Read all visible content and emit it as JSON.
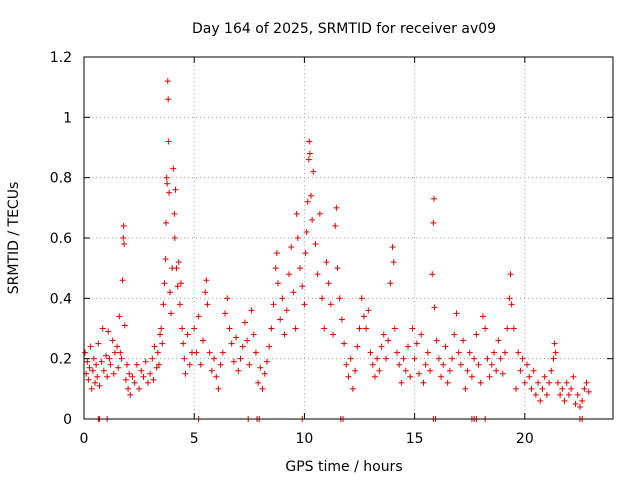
{
  "chart_data": {
    "type": "scatter",
    "title": "Day 164 of 2025, SRMTID for receiver av09",
    "xlabel": "GPS time / hours",
    "ylabel": "SRMTID / TECUs",
    "xlim": [
      0,
      24
    ],
    "ylim": [
      0,
      1.2
    ],
    "x_ticks": [
      0,
      5,
      10,
      15,
      20
    ],
    "x_tick_labels": [
      "0",
      "5",
      "10",
      "15",
      "20"
    ],
    "y_ticks": [
      0,
      0.2,
      0.4,
      0.6,
      0.8,
      1.0,
      1.2
    ],
    "y_tick_labels": [
      "0",
      "0.2",
      "0.4",
      "0.6",
      "0.8",
      "1",
      "1.2"
    ],
    "grid": true,
    "marker": "+",
    "color": "#e00000",
    "series": [
      {
        "name": "SRMTID",
        "points": [
          [
            0.05,
            0.22
          ],
          [
            0.1,
            0.15
          ],
          [
            0.15,
            0.19
          ],
          [
            0.2,
            0.13
          ],
          [
            0.25,
            0.17
          ],
          [
            0.3,
            0.24
          ],
          [
            0.35,
            0.1
          ],
          [
            0.4,
            0.16
          ],
          [
            0.45,
            0.2
          ],
          [
            0.5,
            0.12
          ],
          [
            0.55,
            0.18
          ],
          [
            0.6,
            0.14
          ],
          [
            0.65,
            0.25
          ],
          [
            0.7,
            0.11
          ],
          [
            0.8,
            0.19
          ],
          [
            0.85,
            0.3
          ],
          [
            0.9,
            0.16
          ],
          [
            1.0,
            0.21
          ],
          [
            1.05,
            0.14
          ],
          [
            1.1,
            0.29
          ],
          [
            1.15,
            0.2
          ],
          [
            1.2,
            0.18
          ],
          [
            1.3,
            0.26
          ],
          [
            1.35,
            0.15
          ],
          [
            1.4,
            0.22
          ],
          [
            1.5,
            0.24
          ],
          [
            1.55,
            0.17
          ],
          [
            1.6,
            0.34
          ],
          [
            1.65,
            0.22
          ],
          [
            1.7,
            0.2
          ],
          [
            1.75,
            0.46
          ],
          [
            1.78,
            0.6
          ],
          [
            1.8,
            0.64
          ],
          [
            1.82,
            0.58
          ],
          [
            1.85,
            0.31
          ],
          [
            1.9,
            0.13
          ],
          [
            1.95,
            0.18
          ],
          [
            2.0,
            0.1
          ],
          [
            2.05,
            0.15
          ],
          [
            2.1,
            0.08
          ],
          [
            2.2,
            0.14
          ],
          [
            2.3,
            0.12
          ],
          [
            2.4,
            0.18
          ],
          [
            2.5,
            0.1
          ],
          [
            2.6,
            0.16
          ],
          [
            2.7,
            0.14
          ],
          [
            2.8,
            0.19
          ],
          [
            2.9,
            0.12
          ],
          [
            3.0,
            0.15
          ],
          [
            3.1,
            0.2
          ],
          [
            3.15,
            0.13
          ],
          [
            3.2,
            0.24
          ],
          [
            3.3,
            0.17
          ],
          [
            3.35,
            0.22
          ],
          [
            3.4,
            0.18
          ],
          [
            3.45,
            0.28
          ],
          [
            3.5,
            0.3
          ],
          [
            3.55,
            0.25
          ],
          [
            3.6,
            0.38
          ],
          [
            3.65,
            0.45
          ],
          [
            3.7,
            0.53
          ],
          [
            3.72,
            0.65
          ],
          [
            3.75,
            0.8
          ],
          [
            3.77,
            0.78
          ],
          [
            3.8,
            1.12
          ],
          [
            3.82,
            1.06
          ],
          [
            3.84,
            0.92
          ],
          [
            3.86,
            0.75
          ],
          [
            3.9,
            0.42
          ],
          [
            3.95,
            0.35
          ],
          [
            4.0,
            0.5
          ],
          [
            4.05,
            0.83
          ],
          [
            4.1,
            0.68
          ],
          [
            4.12,
            0.6
          ],
          [
            4.15,
            0.76
          ],
          [
            4.2,
            0.5
          ],
          [
            4.25,
            0.44
          ],
          [
            4.3,
            0.52
          ],
          [
            4.35,
            0.38
          ],
          [
            4.4,
            0.45
          ],
          [
            4.45,
            0.3
          ],
          [
            4.5,
            0.25
          ],
          [
            4.55,
            0.2
          ],
          [
            4.6,
            0.15
          ],
          [
            4.7,
            0.28
          ],
          [
            4.8,
            0.18
          ],
          [
            4.9,
            0.22
          ],
          [
            5.0,
            0.3
          ],
          [
            5.1,
            0.22
          ],
          [
            5.2,
            0.34
          ],
          [
            5.3,
            0.18
          ],
          [
            5.4,
            0.26
          ],
          [
            5.5,
            0.42
          ],
          [
            5.55,
            0.46
          ],
          [
            5.6,
            0.38
          ],
          [
            5.7,
            0.22
          ],
          [
            5.8,
            0.16
          ],
          [
            5.9,
            0.2
          ],
          [
            6.0,
            0.14
          ],
          [
            6.1,
            0.1
          ],
          [
            6.2,
            0.18
          ],
          [
            6.3,
            0.22
          ],
          [
            6.4,
            0.35
          ],
          [
            6.5,
            0.4
          ],
          [
            6.6,
            0.3
          ],
          [
            6.7,
            0.25
          ],
          [
            6.8,
            0.19
          ],
          [
            6.9,
            0.27
          ],
          [
            7.0,
            0.16
          ],
          [
            7.1,
            0.2
          ],
          [
            7.2,
            0.24
          ],
          [
            7.3,
            0.32
          ],
          [
            7.4,
            0.26
          ],
          [
            7.5,
            0.18
          ],
          [
            7.6,
            0.36
          ],
          [
            7.7,
            0.28
          ],
          [
            7.8,
            0.22
          ],
          [
            7.9,
            0.12
          ],
          [
            8.0,
            0.17
          ],
          [
            8.1,
            0.1
          ],
          [
            8.2,
            0.15
          ],
          [
            8.3,
            0.19
          ],
          [
            8.4,
            0.24
          ],
          [
            8.5,
            0.3
          ],
          [
            8.6,
            0.38
          ],
          [
            8.7,
            0.5
          ],
          [
            8.75,
            0.55
          ],
          [
            8.8,
            0.45
          ],
          [
            8.9,
            0.33
          ],
          [
            9.0,
            0.4
          ],
          [
            9.1,
            0.28
          ],
          [
            9.2,
            0.36
          ],
          [
            9.3,
            0.48
          ],
          [
            9.4,
            0.57
          ],
          [
            9.5,
            0.42
          ],
          [
            9.6,
            0.3
          ],
          [
            9.65,
            0.68
          ],
          [
            9.7,
            0.6
          ],
          [
            9.8,
            0.5
          ],
          [
            9.9,
            0.44
          ],
          [
            10.0,
            0.38
          ],
          [
            10.05,
            0.55
          ],
          [
            10.1,
            0.62
          ],
          [
            10.15,
            0.72
          ],
          [
            10.2,
            0.86
          ],
          [
            10.22,
            0.92
          ],
          [
            10.25,
            0.88
          ],
          [
            10.3,
            0.74
          ],
          [
            10.35,
            0.66
          ],
          [
            10.4,
            0.82
          ],
          [
            10.5,
            0.58
          ],
          [
            10.6,
            0.48
          ],
          [
            10.7,
            0.68
          ],
          [
            10.8,
            0.4
          ],
          [
            10.9,
            0.3
          ],
          [
            11.0,
            0.52
          ],
          [
            11.1,
            0.45
          ],
          [
            11.2,
            0.38
          ],
          [
            11.3,
            0.28
          ],
          [
            11.4,
            0.64
          ],
          [
            11.45,
            0.7
          ],
          [
            11.5,
            0.5
          ],
          [
            11.6,
            0.4
          ],
          [
            11.7,
            0.33
          ],
          [
            11.8,
            0.25
          ],
          [
            11.9,
            0.18
          ],
          [
            12.0,
            0.14
          ],
          [
            12.1,
            0.2
          ],
          [
            12.2,
            0.1
          ],
          [
            12.3,
            0.16
          ],
          [
            12.4,
            0.24
          ],
          [
            12.5,
            0.3
          ],
          [
            12.6,
            0.4
          ],
          [
            12.7,
            0.34
          ],
          [
            12.8,
            0.3
          ],
          [
            12.9,
            0.36
          ],
          [
            13.0,
            0.22
          ],
          [
            13.1,
            0.18
          ],
          [
            13.2,
            0.14
          ],
          [
            13.3,
            0.2
          ],
          [
            13.4,
            0.16
          ],
          [
            13.5,
            0.24
          ],
          [
            13.6,
            0.28
          ],
          [
            13.7,
            0.2
          ],
          [
            13.8,
            0.26
          ],
          [
            13.9,
            0.45
          ],
          [
            14.0,
            0.57
          ],
          [
            14.05,
            0.52
          ],
          [
            14.1,
            0.3
          ],
          [
            14.2,
            0.22
          ],
          [
            14.3,
            0.18
          ],
          [
            14.4,
            0.12
          ],
          [
            14.5,
            0.2
          ],
          [
            14.6,
            0.16
          ],
          [
            14.7,
            0.24
          ],
          [
            14.8,
            0.14
          ],
          [
            14.9,
            0.3
          ],
          [
            15.0,
            0.2
          ],
          [
            15.1,
            0.25
          ],
          [
            15.2,
            0.15
          ],
          [
            15.3,
            0.28
          ],
          [
            15.4,
            0.12
          ],
          [
            15.5,
            0.18
          ],
          [
            15.6,
            0.22
          ],
          [
            15.7,
            0.16
          ],
          [
            15.8,
            0.48
          ],
          [
            15.85,
            0.65
          ],
          [
            15.88,
            0.73
          ],
          [
            15.9,
            0.37
          ],
          [
            16.0,
            0.26
          ],
          [
            16.1,
            0.2
          ],
          [
            16.2,
            0.14
          ],
          [
            16.3,
            0.18
          ],
          [
            16.4,
            0.24
          ],
          [
            16.5,
            0.12
          ],
          [
            16.6,
            0.16
          ],
          [
            16.7,
            0.2
          ],
          [
            16.8,
            0.28
          ],
          [
            16.9,
            0.35
          ],
          [
            17.0,
            0.22
          ],
          [
            17.1,
            0.18
          ],
          [
            17.2,
            0.26
          ],
          [
            17.3,
            0.1
          ],
          [
            17.4,
            0.16
          ],
          [
            17.5,
            0.22
          ],
          [
            17.6,
            0.14
          ],
          [
            17.7,
            0.2
          ],
          [
            17.8,
            0.28
          ],
          [
            17.9,
            0.18
          ],
          [
            18.0,
            0.12
          ],
          [
            18.1,
            0.34
          ],
          [
            18.2,
            0.3
          ],
          [
            18.3,
            0.2
          ],
          [
            18.4,
            0.14
          ],
          [
            18.5,
            0.18
          ],
          [
            18.6,
            0.22
          ],
          [
            18.7,
            0.16
          ],
          [
            18.8,
            0.26
          ],
          [
            18.9,
            0.2
          ],
          [
            19.0,
            0.15
          ],
          [
            19.1,
            0.22
          ],
          [
            19.2,
            0.3
          ],
          [
            19.3,
            0.4
          ],
          [
            19.35,
            0.48
          ],
          [
            19.4,
            0.38
          ],
          [
            19.5,
            0.3
          ],
          [
            19.6,
            0.1
          ],
          [
            19.7,
            0.22
          ],
          [
            19.8,
            0.16
          ],
          [
            19.9,
            0.2
          ],
          [
            20.0,
            0.12
          ],
          [
            20.1,
            0.18
          ],
          [
            20.2,
            0.14
          ],
          [
            20.3,
            0.1
          ],
          [
            20.4,
            0.16
          ],
          [
            20.5,
            0.08
          ],
          [
            20.6,
            0.12
          ],
          [
            20.7,
            0.06
          ],
          [
            20.8,
            0.1
          ],
          [
            20.9,
            0.14
          ],
          [
            21.0,
            0.08
          ],
          [
            21.1,
            0.12
          ],
          [
            21.2,
            0.16
          ],
          [
            21.3,
            0.2
          ],
          [
            21.35,
            0.25
          ],
          [
            21.4,
            0.22
          ],
          [
            21.5,
            0.12
          ],
          [
            21.6,
            0.08
          ],
          [
            21.7,
            0.1
          ],
          [
            21.8,
            0.06
          ],
          [
            21.9,
            0.12
          ],
          [
            22.0,
            0.08
          ],
          [
            22.1,
            0.1
          ],
          [
            22.2,
            0.14
          ],
          [
            22.3,
            0.05
          ],
          [
            22.4,
            0.08
          ],
          [
            22.5,
            0.04
          ],
          [
            22.6,
            0.06
          ],
          [
            22.7,
            0.1
          ],
          [
            22.8,
            0.12
          ],
          [
            22.9,
            0.09
          ]
        ]
      }
    ],
    "zero_points_x": [
      0.65,
      0.7,
      1.05,
      5.2,
      7.45,
      7.85,
      7.95,
      9.9,
      11.65,
      11.75,
      15.85,
      15.95,
      17.6,
      17.7,
      17.8,
      18.2,
      22.5,
      22.6
    ]
  }
}
